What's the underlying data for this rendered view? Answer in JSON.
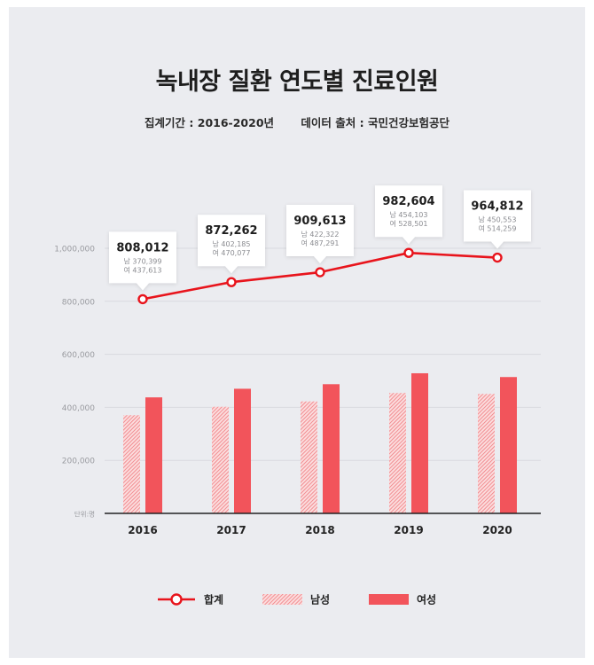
{
  "title": "녹내장 질환 연도별 진료인원",
  "subtitle": {
    "period": "집계기간 : 2016-2020년",
    "source": "데이터 출처 : 국민건강보험공단"
  },
  "colors": {
    "accent": "#e8141c",
    "female_bar": "#f2545b",
    "male_bar": "#f48a8e",
    "background": "#ebecf0"
  },
  "chart_data": {
    "type": "bar",
    "categories": [
      "2016",
      "2017",
      "2018",
      "2019",
      "2020"
    ],
    "series": [
      {
        "name": "합계",
        "type": "line",
        "values": [
          808012,
          872262,
          909613,
          982604,
          964812
        ]
      },
      {
        "name": "남성",
        "type": "bar",
        "values": [
          370399,
          402185,
          422322,
          454103,
          450553
        ]
      },
      {
        "name": "여성",
        "type": "bar",
        "values": [
          437613,
          470077,
          487291,
          528501,
          514259
        ]
      }
    ],
    "callouts": [
      {
        "total": "808,012",
        "male": "남 370,399",
        "female": "여 437,613"
      },
      {
        "total": "872,262",
        "male": "남 402,185",
        "female": "여 470,077"
      },
      {
        "total": "909,613",
        "male": "남 422,322",
        "female": "여 487,291"
      },
      {
        "total": "982,604",
        "male": "남 454,103",
        "female": "여 528,501"
      },
      {
        "total": "964,812",
        "male": "남 450,553",
        "female": "여 514,259"
      }
    ],
    "y_ticks": [
      {
        "value": 200000,
        "label": "200,000"
      },
      {
        "value": 400000,
        "label": "400,000"
      },
      {
        "value": 600000,
        "label": "600,000"
      },
      {
        "value": 800000,
        "label": "800,000"
      },
      {
        "value": 1000000,
        "label": "1,000,000"
      }
    ],
    "unit_label": "단위:명",
    "ylim": [
      0,
      1000000
    ],
    "grid": true,
    "legend_position": "bottom",
    "legend": [
      {
        "key": "total",
        "label": "합계"
      },
      {
        "key": "male",
        "label": "남성"
      },
      {
        "key": "female",
        "label": "여성"
      }
    ]
  }
}
